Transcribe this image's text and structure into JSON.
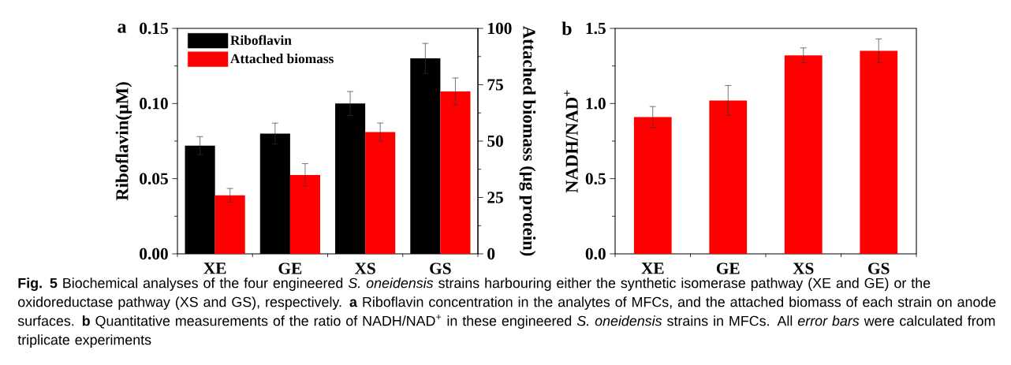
{
  "chart_data": [
    {
      "type": "bar",
      "title": "a",
      "ylabel": "Riboflavin(μM)",
      "y2label": "Attached biomass (μg protein)",
      "categories": [
        "XE",
        "GE",
        "XS",
        "GS"
      ],
      "series": [
        {
          "name": "Riboflavin",
          "color": "#000000",
          "values": [
            0.072,
            0.08,
            0.1,
            0.13
          ],
          "errors": [
            0.006,
            0.007,
            0.008,
            0.01
          ]
        },
        {
          "name": "Attached biomass",
          "color": "#ff0000",
          "axis": "y2",
          "values": [
            26,
            35,
            54,
            72
          ],
          "errors": [
            3,
            5,
            4,
            6
          ]
        }
      ],
      "ylim": [
        0,
        0.15
      ],
      "yticks": [
        {
          "value": 0,
          "label": "0.00"
        },
        {
          "value": 0.05,
          "label": "0.05"
        },
        {
          "value": 0.1,
          "label": "0.10"
        },
        {
          "value": 0.15,
          "label": "0.15"
        }
      ],
      "y2lim": [
        0,
        100
      ],
      "y2ticks": [
        0,
        25,
        50,
        75,
        100
      ],
      "legend": "top left"
    },
    {
      "type": "bar",
      "title": "b",
      "ylabel": "NADH/NAD$^{+}$",
      "categories": [
        "XE",
        "GE",
        "XS",
        "GS"
      ],
      "values": [
        0.91,
        1.02,
        1.32,
        1.35
      ],
      "errors": [
        0.07,
        0.1,
        0.05,
        0.08
      ],
      "color": "#ff0000",
      "ylim": [
        0,
        1.5
      ],
      "yticks": [
        {
          "value": 0,
          "label": "0.0"
        },
        {
          "value": 0.5,
          "label": "0.5"
        },
        {
          "value": 1.0,
          "label": "1.0"
        },
        {
          "value": 1.5,
          "label": "1.5"
        }
      ],
      "annotations": [
        "**Fig. 5** Biochemical analyses of the four engineered *S. oneidensis* strains harbouring either the synthetic isomerase pathway (XE and GE) or the oxidoreductase pathway (XS and GS), respectively. **a** Riboflavin concentration in the analytes of MFCs, and the attached biomass of each strain on anode surfaces. **b** Quantitative measurements of the ratio of NADH/NAD$^{+}$ in these engineered *S. oneidensis* strains in MFCs. All *error bars* were calculated from triplicate experiments"
      ]
    }
  ]
}
